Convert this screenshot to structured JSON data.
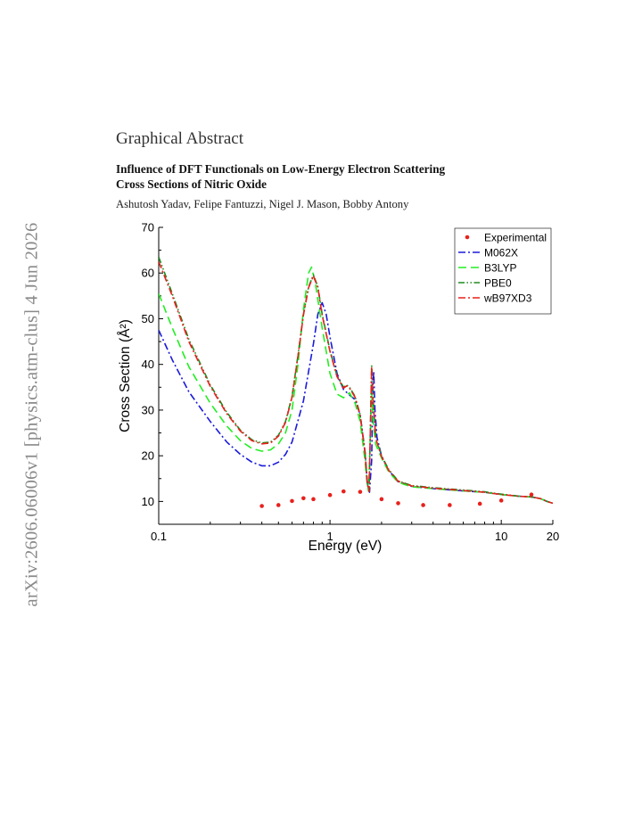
{
  "stamp": "arXiv:2606.06006v1  [physics.atm-clus]  4 Jun 2026",
  "section_heading": "Graphical Abstract",
  "title_line1": "Influence of DFT Functionals on Low-Energy Electron Scattering",
  "title_line2": "Cross Sections of Nitric Oxide",
  "authors": "Ashutosh Yadav, Felipe Fantuzzi, Nigel J. Mason, Bobby Antony",
  "chart_data": {
    "type": "line",
    "title": "",
    "xlabel": "Energy (eV)",
    "ylabel": "Cross Section (Å²)",
    "xscale": "log",
    "xlim": [
      0.1,
      20
    ],
    "ylim": [
      5,
      70
    ],
    "xticks": [
      0.1,
      1,
      10,
      20
    ],
    "xtick_labels": [
      "0.1",
      "1",
      "10",
      "20"
    ],
    "yticks": [
      10,
      20,
      30,
      40,
      50,
      60,
      70
    ],
    "ytick_labels": [
      "10",
      "20",
      "30",
      "40",
      "50",
      "60",
      "70"
    ],
    "grid": false,
    "legend_position": "top-right",
    "series": [
      {
        "name": "Experimental",
        "style": "markers",
        "color": "#e8211c",
        "points": [
          [
            0.4,
            9.0
          ],
          [
            0.5,
            9.2
          ],
          [
            0.6,
            10.1
          ],
          [
            0.7,
            10.7
          ],
          [
            0.8,
            10.5
          ],
          [
            1.0,
            11.4
          ],
          [
            1.2,
            12.2
          ],
          [
            1.5,
            12.1
          ],
          [
            2.0,
            10.5
          ],
          [
            2.5,
            9.6
          ],
          [
            3.5,
            9.2
          ],
          [
            5.0,
            9.2
          ],
          [
            7.5,
            9.5
          ],
          [
            10.0,
            10.2
          ],
          [
            15.0,
            11.5
          ]
        ]
      },
      {
        "name": "M062X",
        "style": "dash-dot",
        "color": "#1a1adb",
        "points": [
          [
            0.1,
            47.5
          ],
          [
            0.12,
            41
          ],
          [
            0.15,
            34
          ],
          [
            0.2,
            27.5
          ],
          [
            0.25,
            23
          ],
          [
            0.3,
            20.3
          ],
          [
            0.35,
            18.6
          ],
          [
            0.4,
            17.8
          ],
          [
            0.45,
            17.8
          ],
          [
            0.5,
            18.6
          ],
          [
            0.55,
            20.3
          ],
          [
            0.6,
            23
          ],
          [
            0.7,
            32
          ],
          [
            0.8,
            44.5
          ],
          [
            0.85,
            51
          ],
          [
            0.9,
            53.5
          ],
          [
            0.95,
            51
          ],
          [
            1.0,
            46
          ],
          [
            1.1,
            38
          ],
          [
            1.2,
            34.5
          ],
          [
            1.3,
            33.3
          ],
          [
            1.4,
            32.3
          ],
          [
            1.5,
            29
          ],
          [
            1.6,
            21
          ],
          [
            1.65,
            14.5
          ],
          [
            1.7,
            12
          ],
          [
            1.75,
            19
          ],
          [
            1.78,
            35
          ],
          [
            1.8,
            38.5
          ],
          [
            1.83,
            30
          ],
          [
            1.88,
            24
          ],
          [
            2.0,
            20
          ],
          [
            2.2,
            16.8
          ],
          [
            2.5,
            14.3
          ],
          [
            3.0,
            13.3
          ],
          [
            4.0,
            12.8
          ],
          [
            6.0,
            12.3
          ],
          [
            8.0,
            12
          ],
          [
            10.0,
            11.5
          ],
          [
            13.0,
            11.1
          ],
          [
            15.0,
            11
          ],
          [
            17.0,
            10.6
          ],
          [
            18.5,
            10
          ],
          [
            20.0,
            9.6
          ]
        ]
      },
      {
        "name": "B3LYP",
        "style": "dashed",
        "color": "#22ee22",
        "points": [
          [
            0.1,
            55.5
          ],
          [
            0.12,
            48
          ],
          [
            0.15,
            39.5
          ],
          [
            0.2,
            31.5
          ],
          [
            0.25,
            26.5
          ],
          [
            0.3,
            23.3
          ],
          [
            0.35,
            21.6
          ],
          [
            0.4,
            21.0
          ],
          [
            0.45,
            21.3
          ],
          [
            0.5,
            22.6
          ],
          [
            0.55,
            25
          ],
          [
            0.6,
            30
          ],
          [
            0.65,
            40
          ],
          [
            0.7,
            52
          ],
          [
            0.75,
            60
          ],
          [
            0.78,
            61.3
          ],
          [
            0.82,
            58
          ],
          [
            0.9,
            48
          ],
          [
            1.0,
            38
          ],
          [
            1.1,
            33.5
          ],
          [
            1.2,
            32.7
          ],
          [
            1.3,
            33.8
          ],
          [
            1.4,
            31.5
          ],
          [
            1.5,
            27.5
          ],
          [
            1.6,
            19
          ],
          [
            1.65,
            13.5
          ],
          [
            1.68,
            12.2
          ],
          [
            1.72,
            24
          ],
          [
            1.75,
            35
          ],
          [
            1.78,
            28
          ],
          [
            1.85,
            22.5
          ],
          [
            2.0,
            19.5
          ],
          [
            2.2,
            16.5
          ],
          [
            2.5,
            14.2
          ],
          [
            3.0,
            13.2
          ],
          [
            4.0,
            12.8
          ],
          [
            6.0,
            12.3
          ],
          [
            8.0,
            12
          ],
          [
            10.0,
            11.5
          ],
          [
            13.0,
            11.1
          ],
          [
            15.0,
            11
          ],
          [
            17.0,
            10.6
          ],
          [
            18.5,
            10
          ],
          [
            20.0,
            9.6
          ]
        ]
      },
      {
        "name": "PBE0",
        "style": "dash-dot-dot",
        "color": "#1e8a1e",
        "points": [
          [
            0.1,
            63.5
          ],
          [
            0.12,
            55.5
          ],
          [
            0.15,
            45.5
          ],
          [
            0.2,
            35.5
          ],
          [
            0.25,
            29.5
          ],
          [
            0.3,
            25.6
          ],
          [
            0.35,
            23.5
          ],
          [
            0.4,
            22.8
          ],
          [
            0.45,
            23
          ],
          [
            0.5,
            24.5
          ],
          [
            0.55,
            27.5
          ],
          [
            0.6,
            33
          ],
          [
            0.65,
            42
          ],
          [
            0.7,
            51
          ],
          [
            0.75,
            57
          ],
          [
            0.8,
            59.6
          ],
          [
            0.85,
            57
          ],
          [
            0.9,
            51
          ],
          [
            1.0,
            43
          ],
          [
            1.1,
            37.5
          ],
          [
            1.2,
            35
          ],
          [
            1.25,
            35.5
          ],
          [
            1.3,
            35
          ],
          [
            1.4,
            33
          ],
          [
            1.5,
            29
          ],
          [
            1.6,
            21
          ],
          [
            1.65,
            14
          ],
          [
            1.69,
            12.3
          ],
          [
            1.72,
            25
          ],
          [
            1.75,
            40
          ],
          [
            1.78,
            33
          ],
          [
            1.85,
            24
          ],
          [
            2.0,
            20
          ],
          [
            2.2,
            17
          ],
          [
            2.5,
            14.5
          ],
          [
            3.0,
            13.5
          ],
          [
            4.0,
            13
          ],
          [
            6.0,
            12.5
          ],
          [
            8.0,
            12.1
          ],
          [
            10.0,
            11.6
          ],
          [
            13.0,
            11.1
          ],
          [
            15.0,
            11
          ],
          [
            17.0,
            10.6
          ],
          [
            18.5,
            10
          ],
          [
            20.0,
            9.6
          ]
        ]
      },
      {
        "name": "wB97XD3",
        "style": "dash-dot",
        "color": "#e8211c",
        "points": [
          [
            0.1,
            62.5
          ],
          [
            0.12,
            55
          ],
          [
            0.15,
            45
          ],
          [
            0.2,
            35.2
          ],
          [
            0.25,
            29.2
          ],
          [
            0.3,
            25.4
          ],
          [
            0.35,
            23.3
          ],
          [
            0.4,
            22.6
          ],
          [
            0.45,
            22.8
          ],
          [
            0.5,
            24.3
          ],
          [
            0.55,
            27.3
          ],
          [
            0.6,
            32.8
          ],
          [
            0.65,
            41.8
          ],
          [
            0.7,
            50.8
          ],
          [
            0.75,
            56.8
          ],
          [
            0.8,
            59.4
          ],
          [
            0.85,
            56.8
          ],
          [
            0.9,
            50.8
          ],
          [
            1.0,
            42.8
          ],
          [
            1.1,
            37.3
          ],
          [
            1.2,
            34.8
          ],
          [
            1.25,
            35.3
          ],
          [
            1.3,
            34.8
          ],
          [
            1.4,
            32.8
          ],
          [
            1.5,
            28.8
          ],
          [
            1.6,
            20.8
          ],
          [
            1.65,
            13.8
          ],
          [
            1.69,
            12.2
          ],
          [
            1.72,
            25
          ],
          [
            1.75,
            39.5
          ],
          [
            1.78,
            32.5
          ],
          [
            1.85,
            23.8
          ],
          [
            2.0,
            19.8
          ],
          [
            2.2,
            16.8
          ],
          [
            2.5,
            14.4
          ],
          [
            3.0,
            13.4
          ],
          [
            4.0,
            12.9
          ],
          [
            6.0,
            12.4
          ],
          [
            8.0,
            12
          ],
          [
            10.0,
            11.5
          ],
          [
            13.0,
            11.1
          ],
          [
            15.0,
            11
          ],
          [
            17.0,
            10.6
          ],
          [
            18.5,
            10
          ],
          [
            20.0,
            9.6
          ]
        ]
      }
    ]
  }
}
